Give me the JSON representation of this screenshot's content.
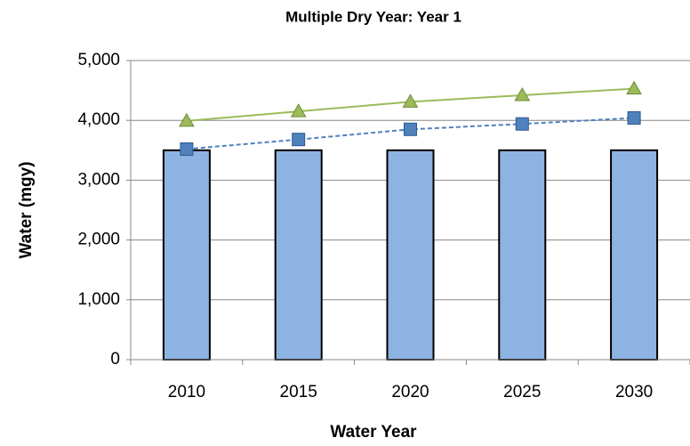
{
  "chart_data": {
    "type": "bar",
    "title": "Multiple Dry Year: Year 1",
    "xlabel": "Water Year",
    "ylabel": "Water (mgy)",
    "categories": [
      "2010",
      "2015",
      "2020",
      "2025",
      "2030"
    ],
    "series": [
      {
        "type": "bar",
        "color": "#8db3e2",
        "values": [
          3500,
          3500,
          3500,
          3500,
          3500
        ]
      },
      {
        "type": "line",
        "color": "#4f81bd",
        "marker": "square",
        "dashed": true,
        "values": [
          3520,
          3680,
          3850,
          3940,
          4040
        ]
      },
      {
        "type": "line",
        "color": "#9bbb59",
        "marker": "triangle",
        "dashed": false,
        "values": [
          3990,
          4150,
          4310,
          4420,
          4530
        ]
      }
    ],
    "ylim": [
      0,
      5000
    ],
    "yticks": [
      0,
      {
        "value": 1000,
        "label": "1,000"
      },
      {
        "value": 2000,
        "label": "2,000"
      },
      {
        "value": 3000,
        "label": "3,000"
      },
      {
        "value": 4000,
        "label": "4,000"
      },
      {
        "value": 5000,
        "label": "5,000"
      }
    ],
    "grid": true
  }
}
